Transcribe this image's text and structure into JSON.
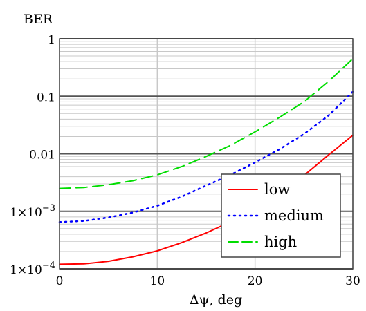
{
  "chart_data": {
    "type": "line",
    "ylabel": "BER",
    "xlabel": "Δψ, deg",
    "xlim": [
      0,
      30
    ],
    "ylim": [
      0.0001,
      1
    ],
    "yscale": "log",
    "grid": true,
    "legend_position": "bottom-right",
    "x_ticks": [
      {
        "value": 0,
        "label": "0"
      },
      {
        "value": 10,
        "label": "10"
      },
      {
        "value": 20,
        "label": "20"
      },
      {
        "value": 30,
        "label": "30"
      }
    ],
    "y_ticks": [
      {
        "value": 1,
        "label": "1",
        "sup": ""
      },
      {
        "value": 0.1,
        "label": "0.1",
        "sup": ""
      },
      {
        "value": 0.01,
        "label": "0.01",
        "sup": ""
      },
      {
        "value": 0.001,
        "label": "1×10",
        "sup": "−3"
      },
      {
        "value": 0.0001,
        "label": "1×10",
        "sup": "−4"
      }
    ],
    "x": [
      0,
      2.5,
      5,
      7.5,
      10,
      12.5,
      15,
      17.5,
      20,
      22.5,
      25,
      27.5,
      30
    ],
    "series": [
      {
        "name": "low",
        "color": "#ff0000",
        "style": "solid",
        "values": [
          0.00012,
          0.000122,
          0.000135,
          0.000162,
          0.000205,
          0.000285,
          0.00042,
          0.00066,
          0.0011,
          0.0021,
          0.0042,
          0.0095,
          0.021
        ]
      },
      {
        "name": "medium",
        "color": "#0000ff",
        "style": "dotted",
        "values": [
          0.00065,
          0.00068,
          0.00078,
          0.00095,
          0.00125,
          0.0018,
          0.0028,
          0.0043,
          0.0071,
          0.012,
          0.022,
          0.046,
          0.12
        ]
      },
      {
        "name": "high",
        "color": "#00dd00",
        "style": "dashed",
        "values": [
          0.0025,
          0.0026,
          0.0029,
          0.0034,
          0.0043,
          0.006,
          0.009,
          0.014,
          0.024,
          0.043,
          0.08,
          0.18,
          0.45
        ]
      }
    ]
  }
}
